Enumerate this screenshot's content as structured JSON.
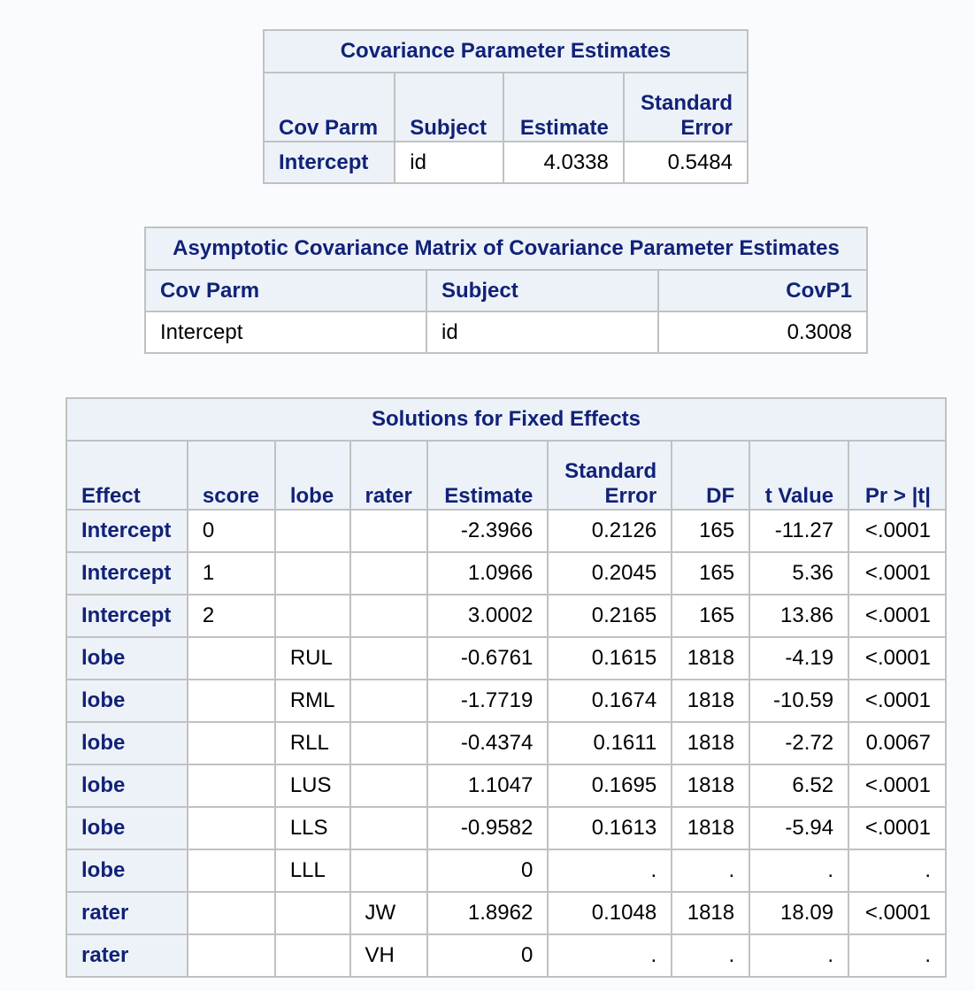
{
  "cov_parm_estimates": {
    "title": "Covariance Parameter Estimates",
    "columns": [
      "Cov Parm",
      "Subject",
      "Estimate",
      "Standard",
      "Error"
    ],
    "rows": [
      [
        "Intercept",
        "id",
        "4.0338",
        "0.5484"
      ]
    ]
  },
  "asymptotic_cov": {
    "title": "Asymptotic Covariance Matrix of Covariance Parameter Estimates",
    "columns": [
      "Cov Parm",
      "Subject",
      "CovP1"
    ],
    "rows": [
      [
        "Intercept",
        "id",
        "0.3008"
      ]
    ]
  },
  "fixed_effects": {
    "title": "Solutions for Fixed Effects",
    "columns": [
      "Effect",
      "score",
      "lobe",
      "rater",
      "Estimate",
      "Standard",
      "Error",
      "DF",
      "t Value",
      "Pr > |t|"
    ],
    "rows": [
      [
        "Intercept",
        "0",
        "",
        "",
        "-2.3966",
        "0.2126",
        "165",
        "-11.27",
        "<.0001"
      ],
      [
        "Intercept",
        "1",
        "",
        "",
        "1.0966",
        "0.2045",
        "165",
        "5.36",
        "<.0001"
      ],
      [
        "Intercept",
        "2",
        "",
        "",
        "3.0002",
        "0.2165",
        "165",
        "13.86",
        "<.0001"
      ],
      [
        "lobe",
        "",
        "RUL",
        "",
        "-0.6761",
        "0.1615",
        "1818",
        "-4.19",
        "<.0001"
      ],
      [
        "lobe",
        "",
        "RML",
        "",
        "-1.7719",
        "0.1674",
        "1818",
        "-10.59",
        "<.0001"
      ],
      [
        "lobe",
        "",
        "RLL",
        "",
        "-0.4374",
        "0.1611",
        "1818",
        "-2.72",
        "0.0067"
      ],
      [
        "lobe",
        "",
        "LUS",
        "",
        "1.1047",
        "0.1695",
        "1818",
        "6.52",
        "<.0001"
      ],
      [
        "lobe",
        "",
        "LLS",
        "",
        "-0.9582",
        "0.1613",
        "1818",
        "-5.94",
        "<.0001"
      ],
      [
        "lobe",
        "",
        "LLL",
        "",
        "0",
        ".",
        ".",
        ".",
        "."
      ],
      [
        "rater",
        "",
        "",
        "JW",
        "1.8962",
        "0.1048",
        "1818",
        "18.09",
        "<.0001"
      ],
      [
        "rater",
        "",
        "",
        "VH",
        "0",
        ".",
        ".",
        ".",
        "."
      ]
    ]
  }
}
